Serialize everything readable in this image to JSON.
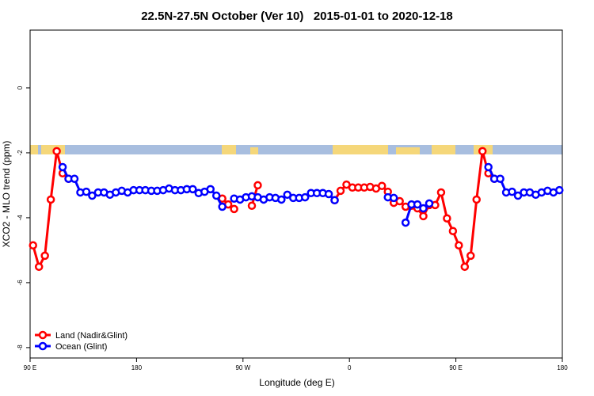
{
  "chart_data": {
    "type": "line",
    "title": "22.5N-27.5N October (Ver 10)   2015-01-01 to 2020-12-18",
    "x_label": "Longitude (deg E)",
    "y_label": "XCO2 - MLO trend (ppm)",
    "x": [
      92.5,
      97.5,
      102.5,
      107.5,
      112.5,
      117.5,
      122.5,
      127.5,
      132.5,
      137.5,
      142.5,
      147.5,
      152.5,
      157.5,
      162.5,
      167.5,
      172.5,
      177.5,
      182.5,
      187.5,
      192.5,
      197.5,
      202.5,
      207.5,
      212.5,
      217.5,
      222.5,
      227.5,
      232.5,
      237.5,
      242.5,
      247.5,
      252.5,
      257.5,
      262.5,
      267.5,
      272.5,
      277.5,
      282.5,
      287.5,
      292.5,
      297.5,
      302.5,
      307.5,
      312.5,
      317.5,
      322.5,
      327.5,
      332.5,
      337.5,
      342.5,
      347.5,
      352.5,
      357.5,
      362.5,
      367.5,
      372.5,
      377.5,
      382.5,
      387.5,
      392.5,
      397.5,
      402.5,
      407.5,
      412.5,
      417.5,
      422.5,
      427.5,
      432.5,
      437.5,
      442.5,
      447.5,
      452.5,
      457.5,
      462.5,
      467.5,
      472.5,
      477.5,
      482.5,
      487.5,
      492.5,
      497.5,
      502.5,
      507.5,
      512.5,
      517.5,
      522.5,
      527.5,
      532.5,
      537.5
    ],
    "series": [
      {
        "name": "Land (Nadir&Glint)",
        "color": "#ff0000",
        "values": [
          -4.85,
          -5.51,
          -5.17,
          -3.44,
          -1.95,
          -2.63,
          -2.8,
          null,
          null,
          null,
          null,
          null,
          null,
          null,
          null,
          null,
          null,
          null,
          null,
          null,
          null,
          null,
          null,
          null,
          null,
          null,
          null,
          null,
          null,
          null,
          null,
          null,
          -3.41,
          -3.59,
          -3.73,
          null,
          null,
          -3.63,
          -3.0,
          null,
          null,
          null,
          null,
          null,
          null,
          null,
          null,
          null,
          null,
          null,
          null,
          -3.46,
          -3.17,
          -2.98,
          -3.07,
          -3.07,
          -3.07,
          -3.05,
          -3.1,
          -3.02,
          -3.2,
          -3.54,
          -3.49,
          -3.66,
          -3.63,
          -3.71,
          -3.95,
          -3.61,
          -3.61,
          -3.22,
          -4.02,
          -4.41,
          -4.85,
          -5.51,
          -5.17,
          -3.44,
          -1.95,
          -2.63,
          -2.8,
          null,
          null,
          null,
          null,
          null,
          null,
          null,
          null,
          null,
          null,
          null
        ]
      },
      {
        "name": "Ocean (Glint)",
        "color": "#0000ff",
        "values": [
          null,
          null,
          null,
          null,
          null,
          -2.44,
          -2.8,
          -2.8,
          -3.22,
          -3.2,
          -3.32,
          -3.22,
          -3.22,
          -3.29,
          -3.22,
          -3.17,
          -3.22,
          -3.15,
          -3.15,
          -3.15,
          -3.17,
          -3.17,
          -3.15,
          -3.1,
          -3.15,
          -3.15,
          -3.12,
          -3.12,
          -3.24,
          -3.2,
          -3.12,
          -3.32,
          -3.66,
          null,
          -3.41,
          -3.44,
          -3.37,
          -3.34,
          -3.37,
          -3.44,
          -3.37,
          -3.39,
          -3.44,
          -3.29,
          -3.39,
          -3.39,
          -3.37,
          -3.24,
          -3.24,
          -3.24,
          -3.27,
          -3.46,
          null,
          null,
          null,
          null,
          null,
          null,
          null,
          null,
          -3.37,
          -3.39,
          null,
          -4.15,
          -3.59,
          -3.59,
          -3.71,
          -3.56,
          null,
          null,
          null,
          null,
          null,
          null,
          null,
          null,
          null,
          -2.44,
          -2.8,
          -2.8,
          -3.22,
          -3.2,
          -3.32,
          -3.22,
          -3.22,
          -3.29,
          -3.22,
          -3.17,
          -3.22,
          -3.15
        ]
      }
    ],
    "xlim": [
      90,
      540
    ],
    "ylim": [
      -8.32,
      1.78
    ],
    "xticks": [
      {
        "value": 90,
        "label": "90 E"
      },
      180,
      {
        "value": 270,
        "label": "90 W"
      },
      {
        "value": 360,
        "label": "0"
      },
      {
        "value": 450,
        "label": "90 E"
      },
      {
        "value": 540,
        "label": "180"
      }
    ],
    "yticks": [
      0,
      -2,
      -4,
      -6,
      -8
    ],
    "legend": "bottom-left"
  }
}
